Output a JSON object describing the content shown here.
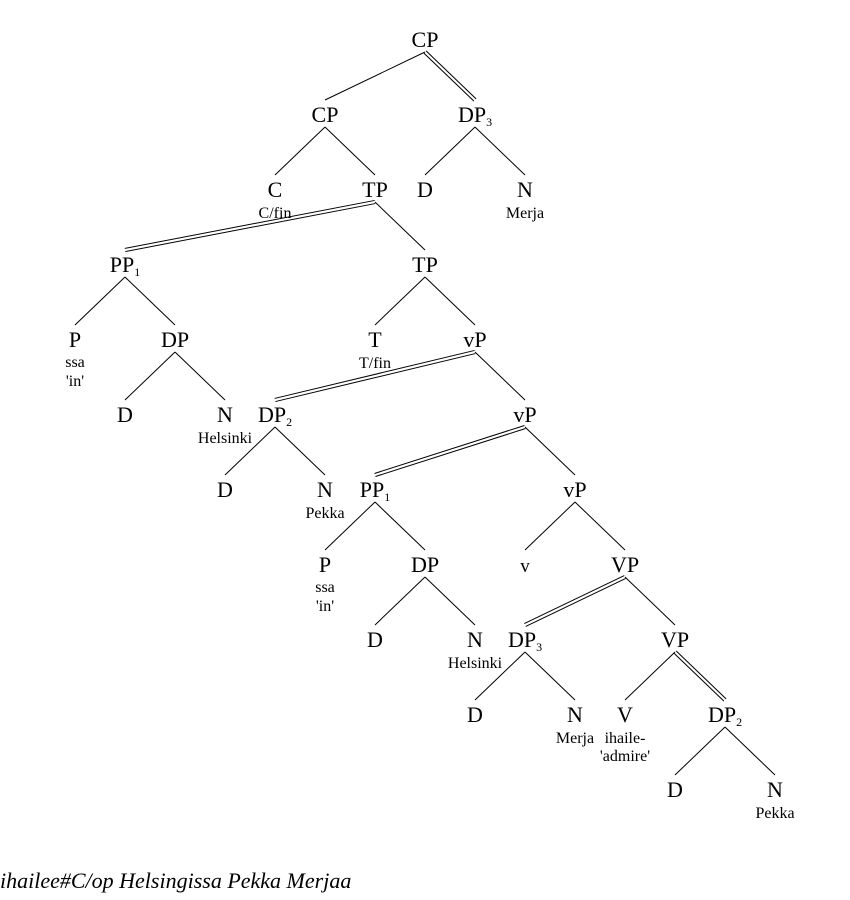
{
  "nodes": {
    "cp_root": "CP",
    "cp": "CP",
    "dp3_top": "DP",
    "dp3_top_sub": "3",
    "c": "C",
    "c_gloss": "C/fin",
    "tp1": "TP",
    "d_merja": "D",
    "n_merja": "N",
    "n_merja_gloss": "Merja",
    "pp1_top": "PP",
    "pp1_top_sub": "1",
    "tp2": "TP",
    "p_top": "P",
    "p_top_gloss": "ssa",
    "p_top_trans": "'in'",
    "dp_top": "DP",
    "t": "T",
    "t_gloss": "T/fin",
    "vp1": "vP",
    "d_hel_top": "D",
    "n_hel_top": "N",
    "n_hel_top_gloss": "Helsinki",
    "dp2_mid": "DP",
    "dp2_mid_sub": "2",
    "vp2": "vP",
    "d_pekka_mid": "D",
    "n_pekka_mid": "N",
    "n_pekka_mid_gloss": "Pekka",
    "pp1_low": "PP",
    "pp1_low_sub": "1",
    "vp3": "vP",
    "p_low": "P",
    "p_low_gloss": "ssa",
    "p_low_trans": "'in'",
    "dp_low": "DP",
    "v_small": "v",
    "VP1": "VP",
    "d_hel_low": "D",
    "n_hel_low": "N",
    "n_hel_low_gloss": "Helsinki",
    "dp3_low": "DP",
    "dp3_low_sub": "3",
    "VP2": "VP",
    "d_merja_low": "D",
    "n_merja_low": "N",
    "n_merja_low_gloss": "Merja",
    "v_big": "V",
    "v_big_gloss": "ihaile-",
    "v_big_trans": "'admire'",
    "dp2_low": "DP",
    "dp2_low_sub": "2",
    "d_pekka_low": "D",
    "n_pekka_low": "N",
    "n_pekka_low_gloss": "Pekka"
  },
  "sentence": "ihailee#C/op Helsingissa Pekka Merjaa"
}
